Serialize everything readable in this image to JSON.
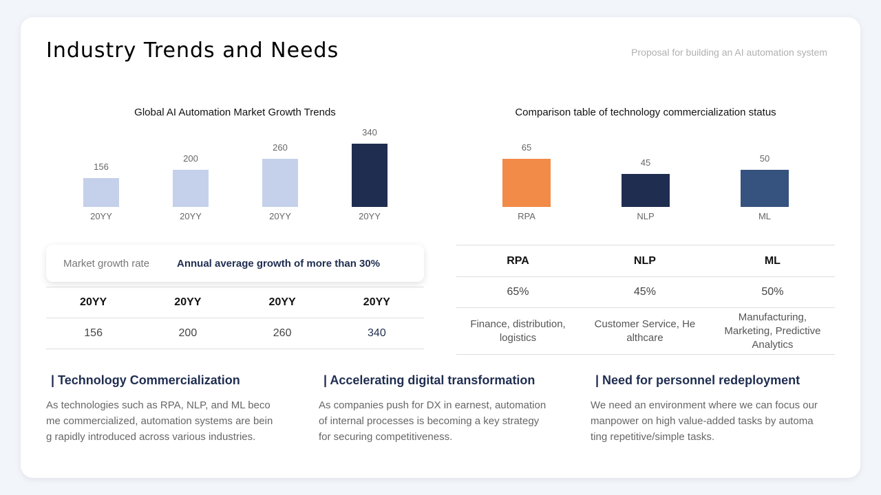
{
  "header": {
    "title": "Industry Trends and Needs",
    "subtitle": "Proposal for building an AI automation system"
  },
  "chart_data": [
    {
      "type": "bar",
      "title": "Global AI Automation Market Growth Trends",
      "categories": [
        "20YY",
        "20YY",
        "20YY",
        "20YY"
      ],
      "values": [
        156,
        200,
        260,
        340
      ],
      "colors": [
        "#c5d1ea",
        "#c5d1ea",
        "#c5d1ea",
        "#1f2d50"
      ],
      "ylim": [
        0,
        340
      ],
      "grid": false
    },
    {
      "type": "bar",
      "title": "Comparison table of technology commercialization status",
      "categories": [
        "RPA",
        "NLP",
        "ML"
      ],
      "values": [
        65,
        45,
        50
      ],
      "colors": [
        "#f28a48",
        "#1f2d50",
        "#36527e"
      ],
      "ylim": [
        0,
        65
      ],
      "grid": false
    }
  ],
  "growth": {
    "label": "Market growth rate",
    "value": "Annual average growth of more than 30%"
  },
  "market_table": {
    "headers": [
      "20YY",
      "20YY",
      "20YY",
      "20YY"
    ],
    "values": [
      "156",
      "200",
      "260",
      "340"
    ]
  },
  "tech_table": {
    "headers": [
      "RPA",
      "NLP",
      "ML"
    ],
    "percent": [
      "65%",
      "45%",
      "50%"
    ],
    "uses": [
      [
        "Finance, distribution,",
        "logistics"
      ],
      [
        "Customer Service, He",
        "althcare"
      ],
      [
        "Manufacturing,",
        "Marketing, Predictive",
        "Analytics"
      ]
    ]
  },
  "sections": [
    {
      "title": "| Technology Commercialization",
      "lines": [
        "As technologies  such as RPA, NLP, and ML beco",
        "me commercialized,  automation systems  are bein",
        "g rapidly introduced across various industries."
      ]
    },
    {
      "title": "| Accelerating digital transformation",
      "lines": [
        "As companies push for DX in earnest, automation",
        "of internal processes is becoming a key strategy",
        "for securing competitiveness."
      ]
    },
    {
      "title": "| Need for personnel redeployment",
      "lines": [
        "We need an environment where we can focus our",
        "manpower on high value-added tasks by automa",
        "ting repetitive/simple  tasks."
      ]
    }
  ]
}
